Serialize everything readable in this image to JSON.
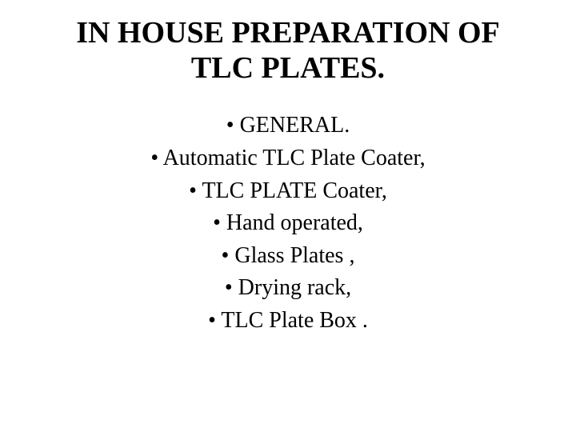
{
  "title_line1": "IN HOUSE PREPARATION OF",
  "title_line2": "TLC PLATES.",
  "bullets": {
    "item0": "•  GENERAL.",
    "item1": "•  Automatic TLC Plate Coater,",
    "item2": "•  TLC PLATE Coater,",
    "item3": "•   Hand operated,",
    "item4": "•  Glass Plates ,",
    "item5": "•  Drying rack,",
    "item6": "•  TLC Plate Box ."
  },
  "style": {
    "background_color": "#ffffff",
    "text_color": "#000000",
    "title_fontsize": 38,
    "title_fontweight": "bold",
    "body_fontsize": 28,
    "font_family": "Times New Roman"
  }
}
